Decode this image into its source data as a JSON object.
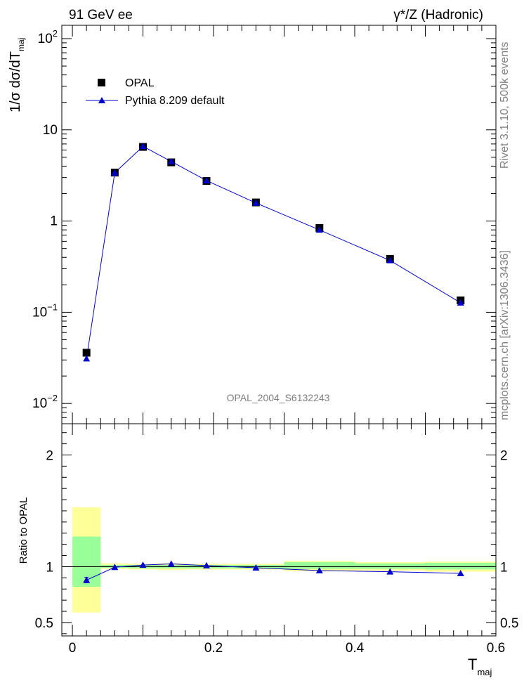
{
  "header": {
    "left": "91 GeV ee",
    "right": "γ*/Z (Hadronic)"
  },
  "side_labels": {
    "upper": "Rivet 3.1.10,  500k events",
    "lower": "mcplots.cern.ch [arXiv:1306.3436]"
  },
  "colors": {
    "data": "#000000",
    "mc": "#0000cc",
    "band_outer": "#ffff99",
    "band_inner": "#99ff99"
  },
  "chart_data": [
    {
      "type": "scatter",
      "panel": "main",
      "ylabel": "1/σ dσ/dT",
      "ylabel_sub": "maj",
      "watermark": "OPAL_2004_S6132243",
      "yscale": "log",
      "xlim": [
        -0.015,
        0.6
      ],
      "ylim": [
        0.006,
        140
      ],
      "y_ticks": [
        {
          "v": 0.01,
          "base": "10",
          "exp": "−2"
        },
        {
          "v": 0.1,
          "base": "10",
          "exp": "−1"
        },
        {
          "v": 1,
          "label": "1"
        },
        {
          "v": 10,
          "label": "10"
        },
        {
          "v": 100,
          "base": "10",
          "exp": "2"
        }
      ],
      "legend": {
        "placement": "top-left",
        "entries": [
          "OPAL",
          "Pythia 8.209 default"
        ]
      },
      "series": [
        {
          "name": "OPAL",
          "marker": "square",
          "x": [
            0.02,
            0.06,
            0.1,
            0.14,
            0.19,
            0.26,
            0.35,
            0.45,
            0.55
          ],
          "y": [
            0.036,
            3.4,
            6.5,
            4.4,
            2.75,
            1.6,
            0.84,
            0.385,
            0.135
          ]
        },
        {
          "name": "Pythia 8.209 default",
          "marker": "triangle",
          "x": [
            0.02,
            0.06,
            0.1,
            0.14,
            0.19,
            0.26,
            0.35,
            0.45,
            0.55
          ],
          "y": [
            0.031,
            3.38,
            6.6,
            4.5,
            2.78,
            1.58,
            0.8,
            0.37,
            0.127
          ]
        }
      ]
    },
    {
      "type": "line",
      "panel": "ratio",
      "ylabel": "Ratio to OPAL",
      "xlabel": "T",
      "xlabel_sub": "maj",
      "xlim": [
        -0.015,
        0.6
      ],
      "ylim": [
        0.38,
        2.28
      ],
      "x_ticks": [
        0,
        0.2,
        0.4,
        0.6
      ],
      "x_tick_labels": [
        "0",
        "0.2",
        "0.4",
        "0.6"
      ],
      "y_ticks": [
        0.5,
        1,
        2
      ],
      "y_tick_labels": [
        "0.5",
        "1",
        "2"
      ],
      "bins": [
        {
          "lo": 0.0,
          "hi": 0.04,
          "inner": [
            0.82,
            1.27
          ],
          "outer": [
            0.59,
            1.53
          ]
        },
        {
          "lo": 0.04,
          "hi": 0.08,
          "inner": [
            0.99,
            1.015
          ],
          "outer": [
            0.98,
            1.03
          ]
        },
        {
          "lo": 0.08,
          "hi": 0.12,
          "inner": [
            0.985,
            1.015
          ],
          "outer": [
            0.975,
            1.025
          ]
        },
        {
          "lo": 0.12,
          "hi": 0.16,
          "inner": [
            0.985,
            1.015
          ],
          "outer": [
            0.97,
            1.03
          ]
        },
        {
          "lo": 0.16,
          "hi": 0.22,
          "inner": [
            0.985,
            1.015
          ],
          "outer": [
            0.975,
            1.025
          ]
        },
        {
          "lo": 0.22,
          "hi": 0.3,
          "inner": [
            0.985,
            1.015
          ],
          "outer": [
            0.975,
            1.025
          ]
        },
        {
          "lo": 0.3,
          "hi": 0.4,
          "inner": [
            0.98,
            1.04
          ],
          "outer": [
            0.96,
            1.05
          ]
        },
        {
          "lo": 0.4,
          "hi": 0.5,
          "inner": [
            0.98,
            1.03
          ],
          "outer": [
            0.965,
            1.04
          ]
        },
        {
          "lo": 0.5,
          "hi": 0.6,
          "inner": [
            0.975,
            1.035
          ],
          "outer": [
            0.955,
            1.045
          ]
        }
      ],
      "series": [
        {
          "name": "Pythia 8.209 default",
          "x": [
            0.02,
            0.06,
            0.1,
            0.14,
            0.19,
            0.26,
            0.35,
            0.45,
            0.55
          ],
          "y": [
            0.88,
            0.995,
            1.015,
            1.025,
            1.01,
            0.99,
            0.965,
            0.955,
            0.94
          ],
          "err": [
            0.025,
            0,
            0,
            0,
            0,
            0,
            0,
            0,
            0
          ]
        }
      ]
    }
  ]
}
